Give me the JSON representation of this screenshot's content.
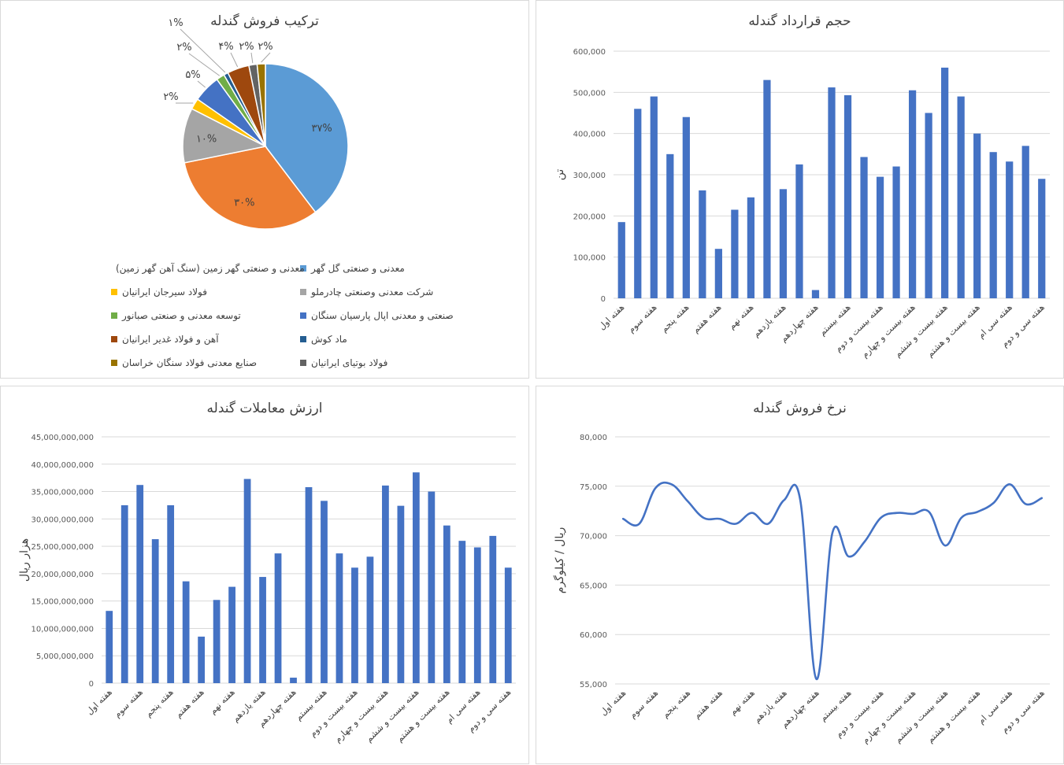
{
  "panels": {
    "pie": {
      "title": "ترکیب فروش گندله"
    },
    "volume": {
      "title": "حجم قرارداد گندله",
      "ylabel": "تن"
    },
    "value": {
      "title": "ارزش معاملات گندله",
      "ylabel": "هزار ریال"
    },
    "rate": {
      "title": "نرخ فروش گندله",
      "ylabel": "ریال / کیلوگرم"
    }
  },
  "x_labels": [
    "هفته اول",
    "هفته سوم",
    "هفته پنجم",
    "هفته هفتم",
    "هفته نهم",
    "هفته یازدهم",
    "هفته چهاردهم",
    "هفته بیستم",
    "هفته بیست و دوم",
    "هفته بیست و چهارم",
    "هفته بیست و ششم",
    "هفته بیست و هشتم",
    "هفته سی ام",
    "هفته سی و دوم"
  ],
  "chart_data": [
    {
      "type": "pie",
      "title": "ترکیب فروش گندله",
      "slices": [
        {
          "name": "معدنی و صنعتی گل گهر",
          "value": 37,
          "label": "۳۷%",
          "color": "#5B9BD5"
        },
        {
          "name": "معدنی و صنعتی گهر زمین (سنگ آهن گهر زمین)",
          "value": 30,
          "label": "۳۰%",
          "color": "#ED7D31"
        },
        {
          "name": "شرکت معدنی وصنعتی چادرملو",
          "value": 10,
          "label": "۱۰%",
          "color": "#A5A5A5"
        },
        {
          "name": "فولاد سیرجان ایرانیان",
          "value": 2,
          "label": "۲%",
          "color": "#FFC000"
        },
        {
          "name": "صنعتی و معدنی اپال پارسیان سنگان",
          "value": 5,
          "label": "۵%",
          "color": "#4472C4"
        },
        {
          "name": "توسعه معدنی و صنعتی صبانور",
          "value": 1.5,
          "label": "۲%",
          "color": "#70AD47"
        },
        {
          "name": "ماد کوش",
          "value": 0.8,
          "label": "۱%",
          "color": "#255E91"
        },
        {
          "name": "آهن و فولاد غدیر ایرانیان",
          "value": 4,
          "label": "۴%",
          "color": "#9E480E"
        },
        {
          "name": "فولاد بوتیای ایرانیان",
          "value": 1.5,
          "label": "۲%",
          "color": "#636363"
        },
        {
          "name": "صنایع معدنی فولاد سنگان خراسان",
          "value": 1.5,
          "label": "۲%",
          "color": "#997300"
        }
      ],
      "legend_position": "bottom"
    },
    {
      "type": "bar",
      "title": "حجم قرارداد گندله",
      "ylabel": "تن",
      "ylim": [
        0,
        600000
      ],
      "yticks": [
        "0",
        "100,000",
        "200,000",
        "300,000",
        "400,000",
        "500,000",
        "600,000"
      ],
      "values": [
        185000,
        460000,
        490000,
        350000,
        440000,
        262000,
        120000,
        215000,
        245000,
        530000,
        265000,
        325000,
        20000,
        512000,
        493000,
        343000,
        295000,
        320000,
        505000,
        450000,
        560000,
        490000,
        400000,
        355000,
        332000,
        370000,
        290000
      ],
      "color": "#4472C4"
    },
    {
      "type": "bar",
      "title": "ارزش معاملات گندله",
      "ylabel": "هزار ریال",
      "ylim": [
        0,
        45000000000
      ],
      "yticks": [
        "0",
        "5,000,000,000",
        "10,000,000,000",
        "15,000,000,000",
        "20,000,000,000",
        "25,000,000,000",
        "30,000,000,000",
        "35,000,000,000",
        "40,000,000,000",
        "45,000,000,000"
      ],
      "values": [
        13200000000,
        32500000000,
        36200000000,
        26300000000,
        32500000000,
        18600000000,
        8500000000,
        15200000000,
        17600000000,
        37300000000,
        19400000000,
        23700000000,
        1000000000,
        35800000000,
        33300000000,
        23700000000,
        21100000000,
        23100000000,
        36100000000,
        32400000000,
        38500000000,
        35000000000,
        28800000000,
        26000000000,
        24800000000,
        26900000000,
        21100000000
      ],
      "color": "#4472C4"
    },
    {
      "type": "line",
      "title": "نرخ فروش گندله",
      "ylabel": "ریال / کیلوگرم",
      "ylim": [
        55000,
        80000
      ],
      "yticks": [
        "55,000",
        "60,000",
        "65,000",
        "70,000",
        "75,000",
        "80,000"
      ],
      "values": [
        71700,
        71200,
        74800,
        75200,
        73500,
        71800,
        71700,
        71200,
        72300,
        71200,
        73600,
        73600,
        55500,
        70300,
        67900,
        69400,
        71800,
        72300,
        72200,
        72400,
        69000,
        71800,
        72400,
        73300,
        75200,
        73200,
        73800
      ],
      "color": "#4472C4"
    }
  ]
}
